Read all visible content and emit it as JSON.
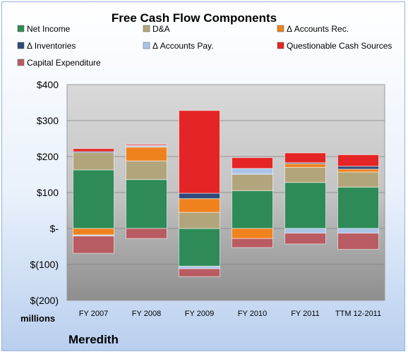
{
  "chart_data": {
    "type": "bar",
    "stacked": true,
    "title": "Free Cash Flow Components",
    "units_label": "millions",
    "company": "Meredith",
    "categories": [
      "FY 2007",
      "FY 2008",
      "FY 2009",
      "FY 2010",
      "FY 2011",
      "TTM 12-2011"
    ],
    "ylim": [
      -200,
      400
    ],
    "yticks": [
      400,
      300,
      200,
      100,
      0,
      -100,
      -200
    ],
    "ytick_labels": [
      "$400",
      "$300",
      "$200",
      "$100",
      "$-",
      "$(100)",
      "$(200)"
    ],
    "grid": true,
    "legend_position": "top",
    "series": [
      {
        "name": "Net Income",
        "color": "#2e8b57",
        "values": [
          163,
          136,
          -105,
          105,
          128,
          115
        ]
      },
      {
        "name": "D&A",
        "color": "#b3a57b",
        "values": [
          48,
          52,
          45,
          45,
          42,
          42
        ]
      },
      {
        "name": "Δ Accounts Rec.",
        "color": "#f0821e",
        "values": [
          -18,
          38,
          38,
          -28,
          10,
          8
        ]
      },
      {
        "name": "Δ Inventories",
        "color": "#2f4a78",
        "values": [
          3,
          2,
          15,
          2,
          3,
          8
        ]
      },
      {
        "name": "Δ Accounts Pay.",
        "color": "#a9c4e8",
        "values": [
          -3,
          3,
          -7,
          15,
          -13,
          -13
        ]
      },
      {
        "name": "Questionable Cash Sources",
        "color": "#e52525",
        "values": [
          8,
          3,
          230,
          30,
          27,
          32
        ]
      },
      {
        "name": "Capital Expenditure",
        "color": "#b95b62",
        "values": [
          -48,
          -28,
          -22,
          -25,
          -30,
          -45
        ]
      }
    ]
  }
}
